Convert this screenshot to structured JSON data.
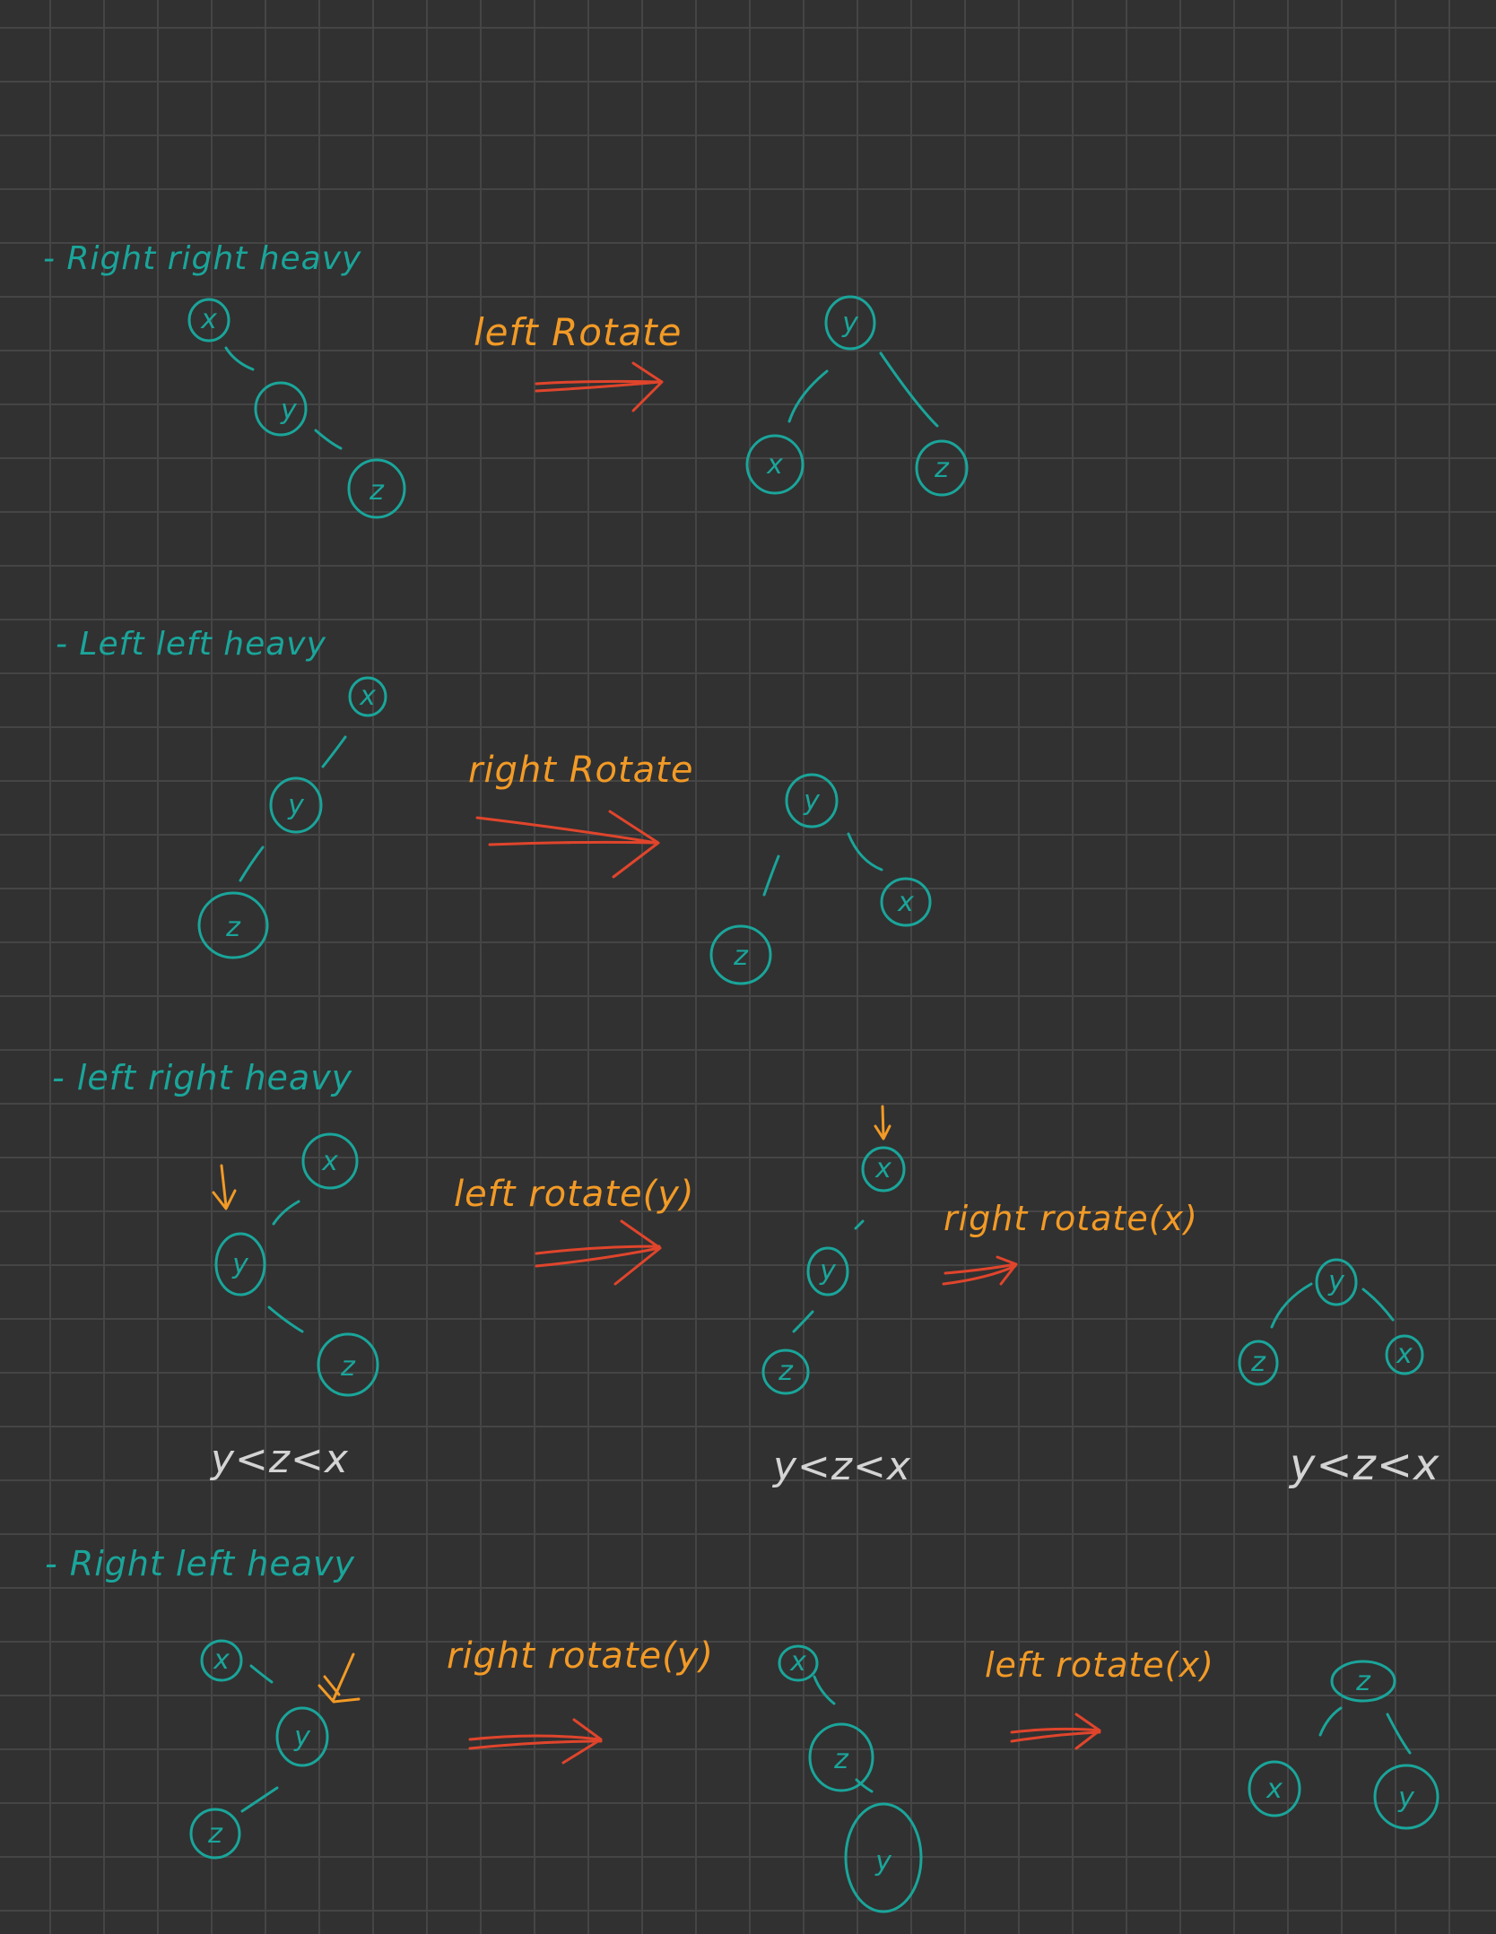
{
  "headings": {
    "h1": "- Right right heavy",
    "h2": "- Left left heavy",
    "h3": "- left right heavy",
    "h4": "- Right left heavy"
  },
  "labels": {
    "s1_op": "left Rotate",
    "s2_op": "right Rotate",
    "s3_op1": "left rotate(y)",
    "s3_op2": "right rotate(x)",
    "s4_op1": "right rotate(y)",
    "s4_op2": "left rotate(x)"
  },
  "notes": {
    "n1": "y<z<x",
    "n2": "y<z<x",
    "n3": "y<z<x"
  },
  "nodes": {
    "x": "x",
    "y": "y",
    "z": "z"
  },
  "colors": {
    "background": "#313131",
    "grid": "#454545",
    "teal_ink": "#1aa59a",
    "orange_ink": "#f29a26",
    "red_arrow": "#e0452c",
    "white_ink": "#d4d4d4"
  }
}
